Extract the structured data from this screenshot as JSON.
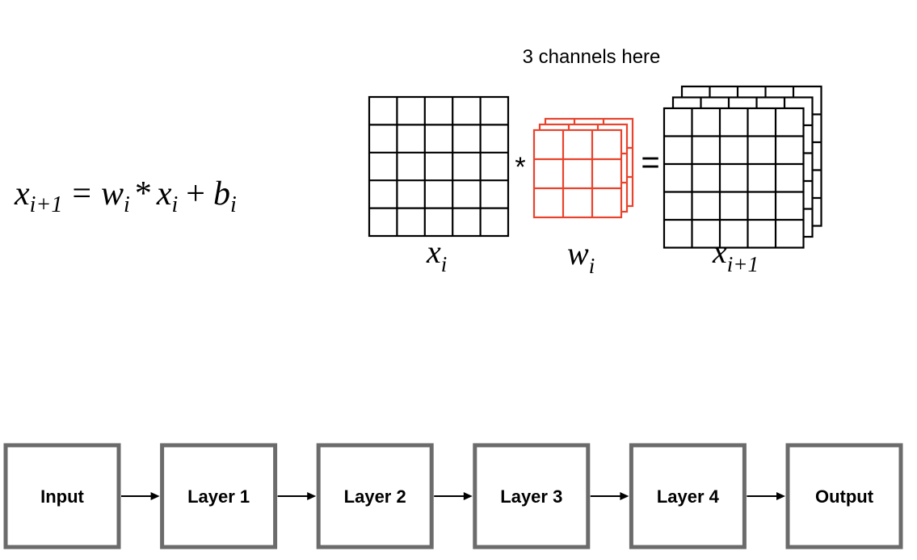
{
  "equation": {
    "lhs_base": "x",
    "lhs_sub": "i+1",
    "equals": "=",
    "w_base": "w",
    "w_sub": "i",
    "conv_op": "*",
    "x_base": "x",
    "x_sub": "i",
    "plus": "+",
    "b_base": "b",
    "b_sub": "i"
  },
  "conv_illustration": {
    "caption": "3 channels here",
    "conv_symbol": "*",
    "equals_symbol": "=",
    "input_grid": {
      "rows": 5,
      "cols": 5,
      "channels": 1,
      "label_base": "x",
      "label_sub": "i"
    },
    "kernel_grid": {
      "rows": 3,
      "cols": 3,
      "channels": 3,
      "label_base": "w",
      "label_sub": "i",
      "color": "#e8432c"
    },
    "output_grid": {
      "rows": 5,
      "cols": 5,
      "channels": 3,
      "label_base": "x",
      "label_sub": "i+1"
    }
  },
  "pipeline": {
    "nodes": [
      "Input",
      "Layer 1",
      "Layer 2",
      "Layer 3",
      "Layer 4",
      "Output"
    ],
    "box_border_color": "#6b6b6b"
  }
}
